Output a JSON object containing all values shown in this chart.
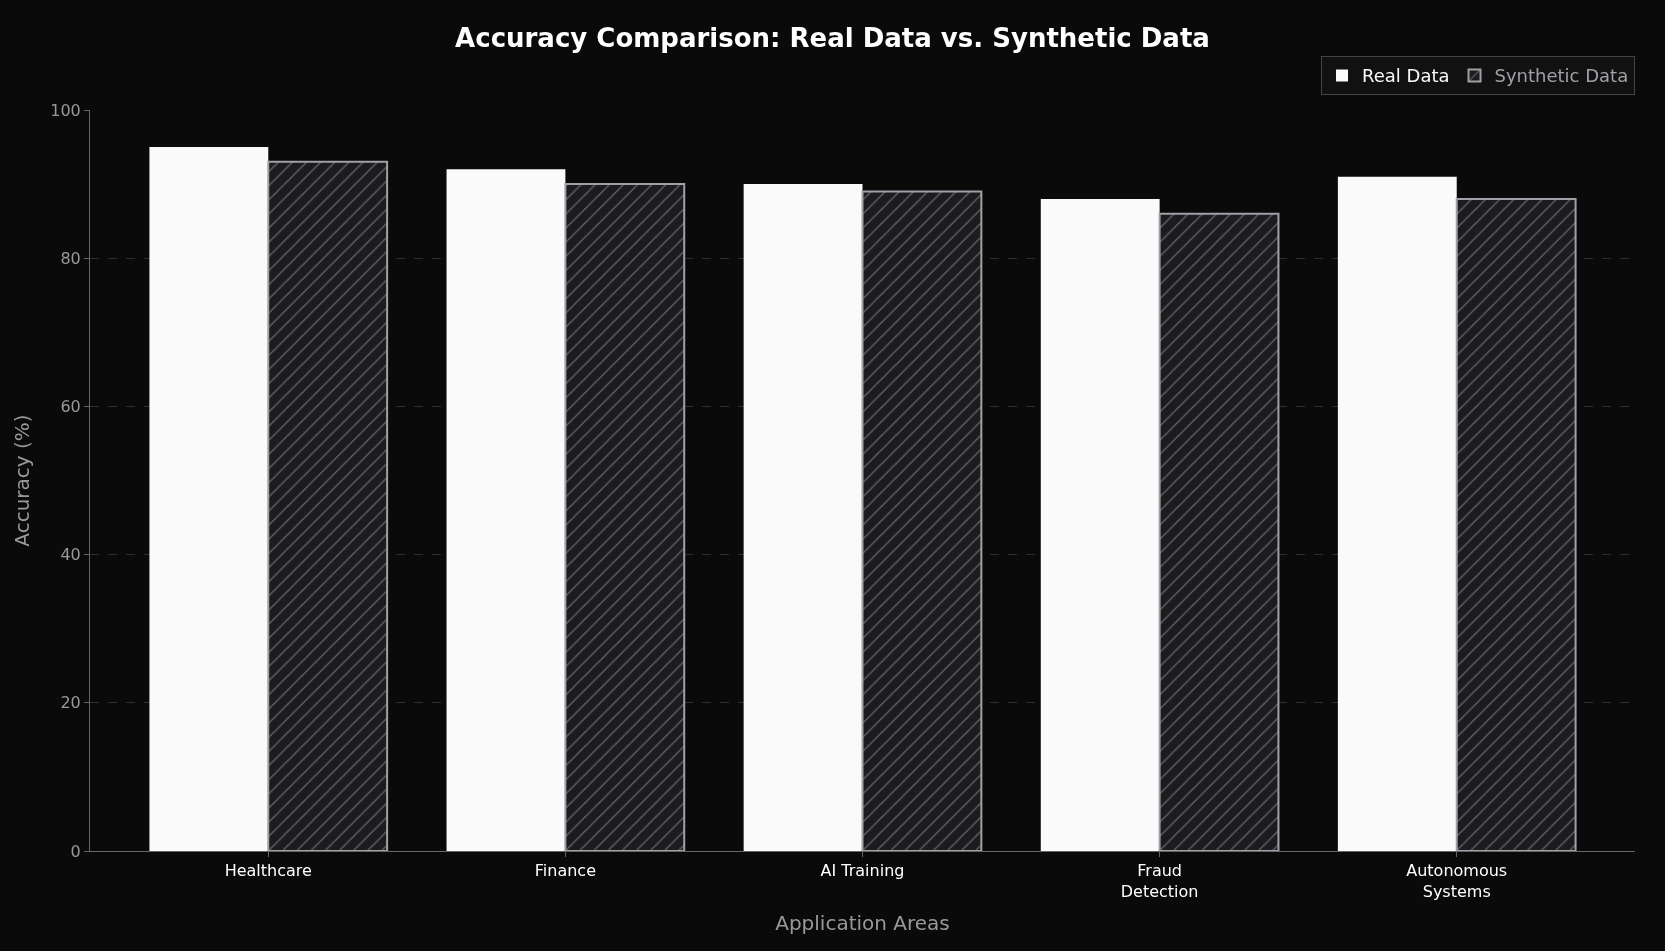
{
  "chart_data": {
    "type": "bar",
    "title": "Accuracy Comparison: Real Data vs. Synthetic Data",
    "xlabel": "Application Areas",
    "ylabel": "Accuracy (%)",
    "categories": [
      "Healthcare",
      "Finance",
      "AI Training",
      "Fraud\nDetection",
      "Autonomous\nSystems"
    ],
    "series": [
      {
        "name": "Real Data",
        "color": "#fafafa",
        "values": [
          95,
          92,
          90,
          88,
          91
        ]
      },
      {
        "name": "Synthetic Data",
        "color": "#a0a0a8",
        "values": [
          93,
          90,
          89,
          86,
          88
        ]
      }
    ],
    "ylim": [
      0,
      100
    ],
    "yticks": [
      0,
      20,
      40,
      60,
      80,
      100
    ],
    "grid": "y",
    "legend": "top right"
  }
}
